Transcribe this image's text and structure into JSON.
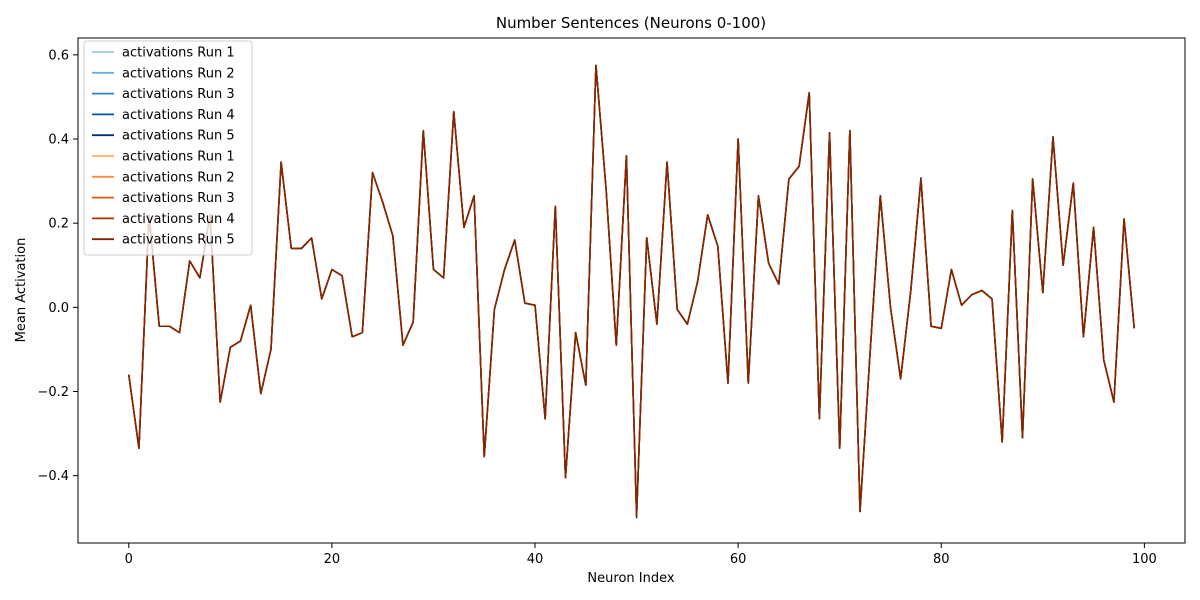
{
  "chart_data": {
    "type": "line",
    "title": "Number Sentences (Neurons 0-100)",
    "xlabel": "Neuron Index",
    "ylabel": "Mean Activation",
    "xlim": [
      -5,
      104
    ],
    "ylim": [
      -0.56,
      0.64
    ],
    "xticks": [
      0,
      20,
      40,
      60,
      80,
      100
    ],
    "yticks": [
      -0.4,
      -0.2,
      0.0,
      0.2,
      0.4,
      0.6
    ],
    "ytick_labels": [
      "−0.4",
      "−0.2",
      "0.0",
      "0.2",
      "0.4",
      "0.6"
    ],
    "grid": false,
    "legend_position": "top-left",
    "x": [
      0,
      1,
      2,
      3,
      4,
      5,
      6,
      7,
      8,
      9,
      10,
      11,
      12,
      13,
      14,
      15,
      16,
      17,
      18,
      19,
      20,
      21,
      22,
      23,
      24,
      25,
      26,
      27,
      28,
      29,
      30,
      31,
      32,
      33,
      34,
      35,
      36,
      37,
      38,
      39,
      40,
      41,
      42,
      43,
      44,
      45,
      46,
      47,
      48,
      49,
      50,
      51,
      52,
      53,
      54,
      55,
      56,
      57,
      58,
      59,
      60,
      61,
      62,
      63,
      64,
      65,
      66,
      67,
      68,
      69,
      70,
      71,
      72,
      73,
      74,
      75,
      76,
      77,
      78,
      79,
      80,
      81,
      82,
      83,
      84,
      85,
      86,
      87,
      88,
      89,
      90,
      91,
      92,
      93,
      94,
      95,
      96,
      97,
      98,
      99
    ],
    "base_values": [
      -0.16,
      -0.335,
      0.22,
      -0.045,
      -0.045,
      -0.06,
      0.11,
      0.07,
      0.22,
      -0.225,
      -0.095,
      -0.08,
      0.005,
      -0.205,
      -0.1,
      0.345,
      0.14,
      0.14,
      0.165,
      0.02,
      0.09,
      0.075,
      -0.07,
      -0.06,
      0.32,
      0.25,
      0.17,
      -0.09,
      -0.035,
      0.42,
      0.09,
      0.07,
      0.465,
      0.19,
      0.265,
      -0.355,
      -0.005,
      0.09,
      0.16,
      0.01,
      0.005,
      -0.265,
      0.24,
      -0.405,
      -0.06,
      -0.185,
      0.575,
      0.28,
      -0.09,
      0.36,
      -0.495,
      0.165,
      -0.04,
      0.345,
      -0.005,
      -0.04,
      0.06,
      0.22,
      0.145,
      -0.18,
      0.4,
      -0.18,
      0.265,
      0.105,
      0.055,
      0.305,
      0.335,
      0.51,
      -0.265,
      0.415,
      -0.335,
      0.42,
      -0.485,
      -0.105,
      0.265,
      0.0,
      -0.17,
      0.04,
      0.305,
      -0.045,
      -0.05,
      0.09,
      0.005,
      0.03,
      0.04,
      0.02,
      -0.32,
      0.23,
      -0.31,
      0.305,
      0.035,
      0.405,
      0.1,
      0.295,
      -0.07,
      0.19,
      -0.125,
      -0.225,
      0.21,
      -0.05
    ],
    "series": [
      {
        "name": "activations Run 1",
        "color": "#9ecae1",
        "offsets": {}
      },
      {
        "name": "activations Run 2",
        "color": "#6baed6",
        "offsets": {}
      },
      {
        "name": "activations Run 3",
        "color": "#3182bd",
        "offsets": {}
      },
      {
        "name": "activations Run 4",
        "color": "#08519c",
        "offsets": {}
      },
      {
        "name": "activations Run 5",
        "color": "#08306b",
        "offsets": {
          "50": -0.005,
          "78": 0.003
        }
      },
      {
        "name": "activations Run 1",
        "color": "#fdae6b",
        "offsets": {}
      },
      {
        "name": "activations Run 2",
        "color": "#fd8d3c",
        "offsets": {}
      },
      {
        "name": "activations Run 3",
        "color": "#e6550d",
        "offsets": {}
      },
      {
        "name": "activations Run 4",
        "color": "#a63603",
        "offsets": {}
      },
      {
        "name": "activations Run 5",
        "color": "#7f2704",
        "offsets": {}
      }
    ]
  }
}
